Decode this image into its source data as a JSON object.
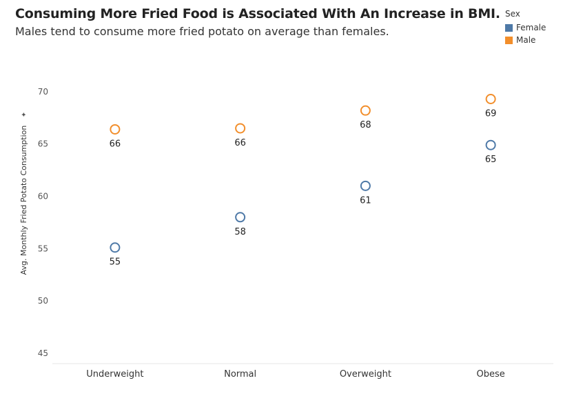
{
  "chart_data": {
    "type": "scatter",
    "title": "Consuming More Fried Food is Associated With An Increase in BMI.",
    "subtitle": "Males tend to consume more fried potato on average than females.",
    "ylabel": "Avg. Monthly Fried Potato Consumption",
    "xlabel": "",
    "categories": [
      "Underweight",
      "Normal",
      "Overweight",
      "Obese"
    ],
    "ylim": [
      44,
      72.5
    ],
    "yticks": [
      45,
      50,
      55,
      60,
      65,
      70
    ],
    "grid": false,
    "legend_title": "Sex",
    "legend_position": "top-right",
    "marker": "hollow-circle",
    "series": [
      {
        "name": "Female",
        "color": "#4e79a7",
        "values": [
          55.1,
          58.0,
          61.0,
          64.9
        ],
        "labels": [
          "55",
          "58",
          "61",
          "65"
        ]
      },
      {
        "name": "Male",
        "color": "#f28e2b",
        "values": [
          66.4,
          66.5,
          68.2,
          69.3
        ],
        "labels": [
          "66",
          "66",
          "68",
          "69"
        ]
      }
    ]
  }
}
